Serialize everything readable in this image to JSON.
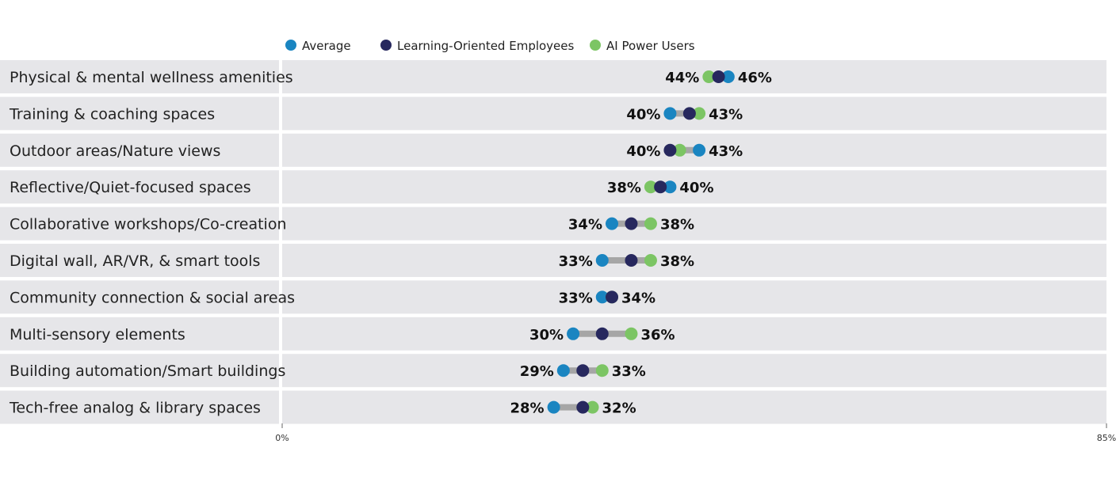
{
  "chart_data": {
    "type": "dumbbell",
    "xlim": [
      0,
      85
    ],
    "tick_labels": [
      "0%",
      "85%"
    ],
    "value_suffix": "%",
    "legend_position": "top",
    "grid": false,
    "series": [
      {
        "name": "Average",
        "color": "#1a85c1"
      },
      {
        "name": "Learning-Oriented Employees",
        "color": "#27285e"
      },
      {
        "name": "AI Power Users",
        "color": "#7cc564"
      }
    ],
    "categories": [
      "Physical & mental wellness amenities",
      "Training & coaching spaces",
      "Outdoor areas/Nature views",
      "Reflective/Quiet-focused spaces",
      "Collaborative workshops/Co-creation",
      "Digital wall, AR/VR, & smart tools",
      "Community connection & social areas",
      "Multi-sensory elements",
      "Building automation/Smart buildings",
      "Tech-free analog & library spaces"
    ],
    "values": {
      "Average": [
        46,
        40,
        43,
        40,
        34,
        33,
        33,
        30,
        29,
        28
      ],
      "Learning-Oriented Employees": [
        45,
        42,
        40,
        39,
        36,
        36,
        34,
        33,
        31,
        31
      ],
      "AI Power Users": [
        44,
        43,
        41,
        38,
        38,
        38,
        34,
        36,
        33,
        32
      ]
    }
  },
  "colors": {
    "row_background": "#e6e6e9",
    "connector": "#a6a6a6"
  }
}
